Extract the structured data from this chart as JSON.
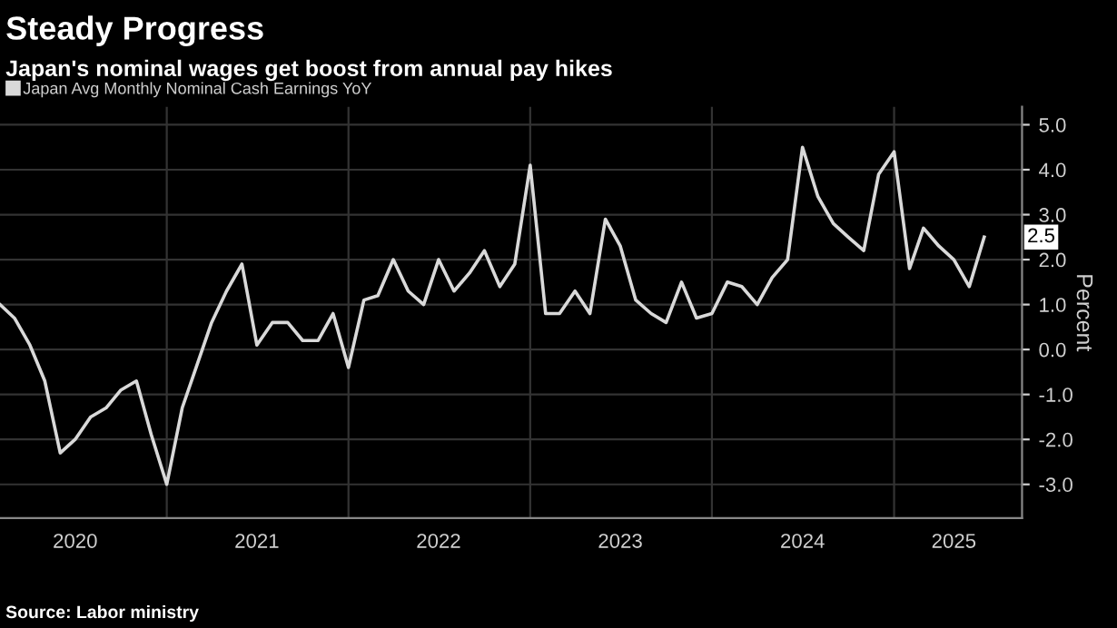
{
  "chart_data": {
    "type": "line",
    "title": "Steady Progress",
    "subtitle": "Japan's nominal wages get boost from annual pay hikes",
    "ylabel": "Percent",
    "annotations": [
      {
        "text": "2.5",
        "x": "2025-07",
        "y": 2.5
      },
      "Source: Labor ministry"
    ],
    "x": [
      "2020-02",
      "2020-03",
      "2020-04",
      "2020-05",
      "2020-06",
      "2020-07",
      "2020-08",
      "2020-09",
      "2020-10",
      "2020-11",
      "2020-12",
      "2021-01",
      "2021-02",
      "2021-03",
      "2021-04",
      "2021-05",
      "2021-06",
      "2021-07",
      "2021-08",
      "2021-09",
      "2021-10",
      "2021-11",
      "2021-12",
      "2022-01",
      "2022-02",
      "2022-03",
      "2022-04",
      "2022-05",
      "2022-06",
      "2022-07",
      "2022-08",
      "2022-09",
      "2022-10",
      "2022-11",
      "2022-12",
      "2023-01",
      "2023-02",
      "2023-03",
      "2023-04",
      "2023-05",
      "2023-06",
      "2023-07",
      "2023-08",
      "2023-09",
      "2023-10",
      "2023-11",
      "2023-12",
      "2024-01",
      "2024-02",
      "2024-03",
      "2024-04",
      "2024-05",
      "2024-06",
      "2024-07",
      "2024-08",
      "2024-09",
      "2024-10",
      "2024-11",
      "2024-12",
      "2025-01",
      "2025-02",
      "2025-03",
      "2025-04",
      "2025-05",
      "2025-06",
      "2025-07"
    ],
    "series": [
      {
        "name": "Japan Avg Monthly Nominal Cash Earnings YoY",
        "color": "#d9d9d9",
        "values": [
          1.0,
          0.7,
          0.1,
          -0.7,
          -2.3,
          -2.0,
          -1.5,
          -1.3,
          -0.9,
          -0.7,
          -1.9,
          -3.0,
          -1.3,
          -0.4,
          0.6,
          1.3,
          1.9,
          0.1,
          0.6,
          0.6,
          0.2,
          0.2,
          0.8,
          -0.4,
          1.1,
          1.2,
          2.0,
          1.3,
          1.0,
          2.0,
          1.3,
          1.7,
          2.2,
          1.4,
          1.9,
          4.1,
          0.8,
          0.8,
          1.3,
          0.8,
          2.9,
          2.3,
          1.1,
          0.8,
          0.6,
          1.5,
          0.7,
          0.8,
          1.5,
          1.4,
          1.0,
          1.6,
          2.0,
          4.5,
          3.4,
          2.8,
          2.5,
          2.2,
          3.9,
          4.4,
          1.8,
          2.7,
          2.3,
          2.0,
          1.4,
          2.5
        ]
      }
    ],
    "xlim": [
      "2020-02-01",
      "2025-09-15"
    ],
    "ylim": [
      -3.75,
      5.4
    ],
    "yticks": [
      {
        "value": 5,
        "label": "5.0"
      },
      {
        "value": 4,
        "label": "4.0"
      },
      {
        "value": 3,
        "label": "3.0"
      },
      {
        "value": 2,
        "label": "2.0"
      },
      {
        "value": 1,
        "label": "1.0"
      },
      {
        "value": 0,
        "label": "0.0"
      },
      {
        "value": -1,
        "label": "-1.0"
      },
      {
        "value": -2,
        "label": "-2.0"
      },
      {
        "value": -3,
        "label": "-3.0"
      }
    ],
    "xticks": [
      {
        "value": "2020-07-01",
        "label": "2020"
      },
      {
        "value": "2021-07-01",
        "label": "2021"
      },
      {
        "value": "2022-07-01",
        "label": "2022"
      },
      {
        "value": "2023-07-01",
        "label": "2023"
      },
      {
        "value": "2024-07-01",
        "label": "2024"
      },
      {
        "value": "2025-05-01",
        "label": "2025"
      }
    ],
    "grid": true,
    "legend": "top left",
    "line_style": "solid",
    "marker": "none"
  }
}
